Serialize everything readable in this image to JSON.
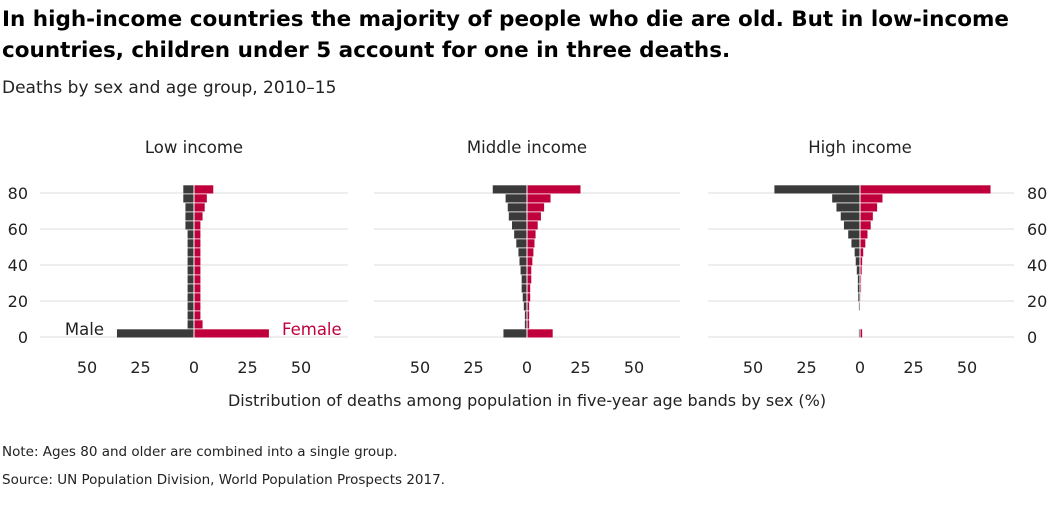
{
  "title": "In high-income countries the majority of people who die are old. But in low-income countries, children under 5 account for one in three deaths.",
  "subtitle": "Deaths by sex and age group, 2010–15",
  "note": "Note: Ages 80 and older are combined into a single group.",
  "source": "Source: UN Population Division, World Population Prospects 2017.",
  "colors": {
    "male": "#3a3a3a",
    "female": "#c0003c",
    "grid": "#dddddd",
    "text": "#222222"
  },
  "chart_data": {
    "type": "bar",
    "orientation": "horizontal-population-pyramid",
    "xlabel": "Distribution of deaths among population in five-year age bands by sex (%)",
    "ylabel": "",
    "xlim": [
      -50,
      50
    ],
    "ylim": [
      0,
      80
    ],
    "y_ticks": [
      0,
      20,
      40,
      60,
      80
    ],
    "x_ticks": [
      50,
      25,
      0,
      25,
      50
    ],
    "age_groups": [
      2,
      7,
      12,
      17,
      22,
      27,
      32,
      37,
      42,
      47,
      52,
      57,
      62,
      67,
      72,
      77,
      82
    ],
    "series_labels": {
      "male": "Male",
      "female": "Female"
    },
    "grid": true,
    "panels": [
      {
        "name": "Low income",
        "male": [
          36,
          3,
          3,
          3,
          3,
          3,
          3,
          3,
          3,
          3,
          3,
          3,
          4,
          4,
          4,
          5,
          5
        ],
        "female": [
          35,
          4,
          3,
          3,
          3,
          3,
          3,
          3,
          3,
          3,
          3,
          3,
          3,
          4,
          5,
          6,
          9
        ]
      },
      {
        "name": "Middle income",
        "male": [
          11,
          1,
          1,
          1.5,
          2,
          2.5,
          2.5,
          3,
          3.5,
          4,
          5,
          6,
          7,
          8.5,
          9,
          10,
          16
        ],
        "female": [
          12,
          1,
          1,
          1,
          1.5,
          1.5,
          2,
          2,
          2.5,
          3,
          3.5,
          4,
          5,
          6.5,
          8,
          11,
          25
        ]
      },
      {
        "name": "High income",
        "male": [
          0.5,
          0.2,
          0.2,
          0.5,
          0.8,
          1,
          1,
          1.5,
          2,
          2.5,
          4,
          5.5,
          7.5,
          9,
          11,
          13,
          40
        ],
        "female": [
          1,
          0.1,
          0.1,
          0.2,
          0.3,
          0.5,
          0.5,
          0.8,
          1,
          1.5,
          2.5,
          3.5,
          5,
          6,
          8,
          10.5,
          61
        ]
      }
    ]
  }
}
